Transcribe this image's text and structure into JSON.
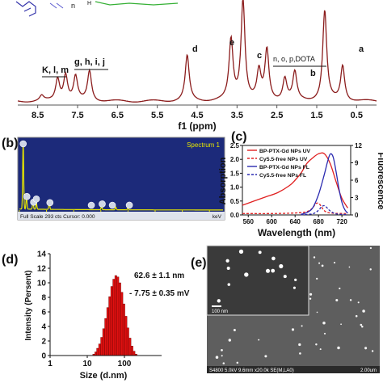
{
  "colors": {
    "nmr_line": "#8b1d1d",
    "eds_bg": "#1c2a7a",
    "eds_line": "#e6e600",
    "eds_marker": "#cfd6e6",
    "uv_bp": "#e02020",
    "uv_cy": "#e02020",
    "fl_bp": "#2a2ab0",
    "fl_cy": "#2a2ab0",
    "dls_bar": "#e01010",
    "sem_bg": "#5e5e5e",
    "sem_inset": "#3a3a3a"
  },
  "panels": {
    "a": {
      "peak_labels": [
        "K, l, m",
        "g, h, i, j",
        "d",
        "e",
        "c",
        "n, o, p,DOTA",
        "b",
        "a"
      ],
      "chart_data": {
        "type": "line",
        "xlabel": "f1 (ppm)",
        "x_reversed": true,
        "xlim": [
          9.0,
          0.0
        ],
        "ticks": [
          "8.5",
          "7.5",
          "6.5",
          "5.5",
          "4.5",
          "3.5",
          "2.5",
          "1.5",
          "0.5"
        ],
        "tick_values": [
          8.5,
          7.5,
          6.5,
          5.5,
          4.5,
          3.5,
          2.5,
          1.5,
          0.5
        ],
        "peaks": [
          {
            "x": 8.4,
            "h": 0.05
          },
          {
            "x": 8.0,
            "h": 0.22
          },
          {
            "x": 7.8,
            "h": 0.26
          },
          {
            "x": 7.55,
            "h": 0.24
          },
          {
            "x": 7.2,
            "h": 0.3
          },
          {
            "x": 4.75,
            "h": 0.45
          },
          {
            "x": 3.65,
            "h": 0.6
          },
          {
            "x": 3.35,
            "h": 1.0
          },
          {
            "x": 2.95,
            "h": 0.28
          },
          {
            "x": 2.75,
            "h": 0.5
          },
          {
            "x": 2.3,
            "h": 0.22
          },
          {
            "x": 2.05,
            "h": 0.28
          },
          {
            "x": 1.3,
            "h": 0.9
          },
          {
            "x": 0.85,
            "h": 0.35
          }
        ]
      }
    },
    "b": {
      "label": "(b)",
      "spectrum_label": "Spectrum 1",
      "footer_left": "Full Scale 293 cts Cursor: 0.000",
      "footer_right": "keV",
      "chart_data": {
        "type": "line",
        "xlim": [
          0,
          15
        ],
        "ticks": [
          "0",
          "2",
          "4",
          "6",
          "8",
          "10",
          "12",
          "14"
        ],
        "tick_values": [
          0,
          2,
          4,
          6,
          8,
          10,
          12,
          14
        ],
        "peaks": [
          {
            "x": 0.28,
            "h": 1.0
          },
          {
            "x": 0.52,
            "h": 0.18
          },
          {
            "x": 1.0,
            "h": 0.12
          },
          {
            "x": 1.25,
            "h": 0.09
          },
          {
            "x": 2.2,
            "h": 0.1
          },
          {
            "x": 6.05,
            "h": 0.05
          },
          {
            "x": 7.1,
            "h": 0.04
          },
          {
            "x": 8.0,
            "h": 0.03
          }
        ],
        "markers": [
          0.28,
          0.55,
          1.05,
          1.25,
          2.25,
          5.3,
          6.1,
          6.85,
          8.1
        ]
      }
    },
    "c": {
      "label": "(c)",
      "chart_data": {
        "type": "line",
        "xlabel": "Wavelength (nm)",
        "ylabel_left": "Absorption",
        "ylabel_right": "Fluorescence",
        "xlim": [
          550,
          735
        ],
        "xticks": [
          560,
          600,
          640,
          680,
          720
        ],
        "ylim_left": [
          0.0,
          2.5
        ],
        "yticks_left": [
          "0.0",
          "0.5",
          "1.0",
          "1.5",
          "2.0",
          "2.5"
        ],
        "ylim_right": [
          0,
          12
        ],
        "yticks_right": [
          "0",
          "3",
          "6",
          "9",
          "12"
        ],
        "series": [
          {
            "name": "BP-PTX-Gd NPs UV",
            "axis": "left",
            "style": "solid",
            "x": [
              550,
              570,
              590,
              610,
              630,
              640,
              650,
              660,
              670,
              680,
              690,
              700,
              710,
              720,
              730
            ],
            "y": [
              0.35,
              0.5,
              0.65,
              0.8,
              1.05,
              1.25,
              1.5,
              1.85,
              2.05,
              2.2,
              2.2,
              1.85,
              1.2,
              0.6,
              0.25
            ]
          },
          {
            "name": "Cy5.5-free NPs UV",
            "axis": "left",
            "style": "dashed",
            "x": [
              550,
              600,
              640,
              660,
              670,
              675,
              680,
              685,
              690,
              700,
              730
            ],
            "y": [
              0.05,
              0.05,
              0.07,
              0.12,
              0.25,
              0.4,
              0.42,
              0.3,
              0.15,
              0.07,
              0.05
            ]
          },
          {
            "name": "BP-PTX-Gd NPs FL",
            "axis": "right",
            "style": "solid",
            "x": [
              650,
              660,
              670,
              680,
              690,
              695,
              700,
              705,
              710,
              715,
              720,
              725,
              730
            ],
            "y": [
              0.1,
              0.4,
              1.2,
              3.5,
              7.0,
              9.0,
              10.5,
              10.0,
              7.5,
              4.5,
              2.2,
              0.9,
              0.3
            ]
          },
          {
            "name": "Cy5.5-free NPs FL",
            "axis": "right",
            "style": "dashed",
            "x": [
              650,
              670,
              680,
              685,
              690,
              695,
              700,
              710,
              730
            ],
            "y": [
              0.05,
              0.2,
              0.8,
              1.4,
              1.6,
              1.2,
              0.7,
              0.2,
              0.05
            ]
          }
        ]
      }
    },
    "d": {
      "label": "(d)",
      "annotation_size": "62.6 ± 1.1 nm",
      "annotation_zeta": "- 7.75 ± 0.35 mV",
      "chart_data": {
        "type": "bar",
        "xlabel": "Size (d.nm)",
        "ylabel": "Intensity (Persent)",
        "x_scale": "log",
        "xlim": [
          1,
          1000
        ],
        "xticks": [
          "1",
          "10",
          "100"
        ],
        "xtick_values": [
          1,
          10,
          100
        ],
        "ylim": [
          0,
          14
        ],
        "yticks": [
          "0",
          "2",
          "4",
          "6",
          "8",
          "10",
          "12",
          "14"
        ],
        "x": [
          15,
          17,
          19,
          21.5,
          24.4,
          27.6,
          31.3,
          35.5,
          40.2,
          45.6,
          51.7,
          58.6,
          66.4,
          75.3,
          85.4,
          96.8,
          110,
          124,
          141,
          160,
          181,
          205
        ],
        "values": [
          0.2,
          0.5,
          1.0,
          1.6,
          2.5,
          3.7,
          5.1,
          6.6,
          8.1,
          9.5,
          10.5,
          11.0,
          10.8,
          10.0,
          8.7,
          7.1,
          5.4,
          3.8,
          2.4,
          1.3,
          0.6,
          0.2
        ]
      }
    },
    "e": {
      "label": "(e)",
      "inset_scale": "100 nm",
      "footer": "S4800 5.0kV 9.6mm x20.0k SE(M,LA0)",
      "footer_scale": "2.00um"
    }
  }
}
